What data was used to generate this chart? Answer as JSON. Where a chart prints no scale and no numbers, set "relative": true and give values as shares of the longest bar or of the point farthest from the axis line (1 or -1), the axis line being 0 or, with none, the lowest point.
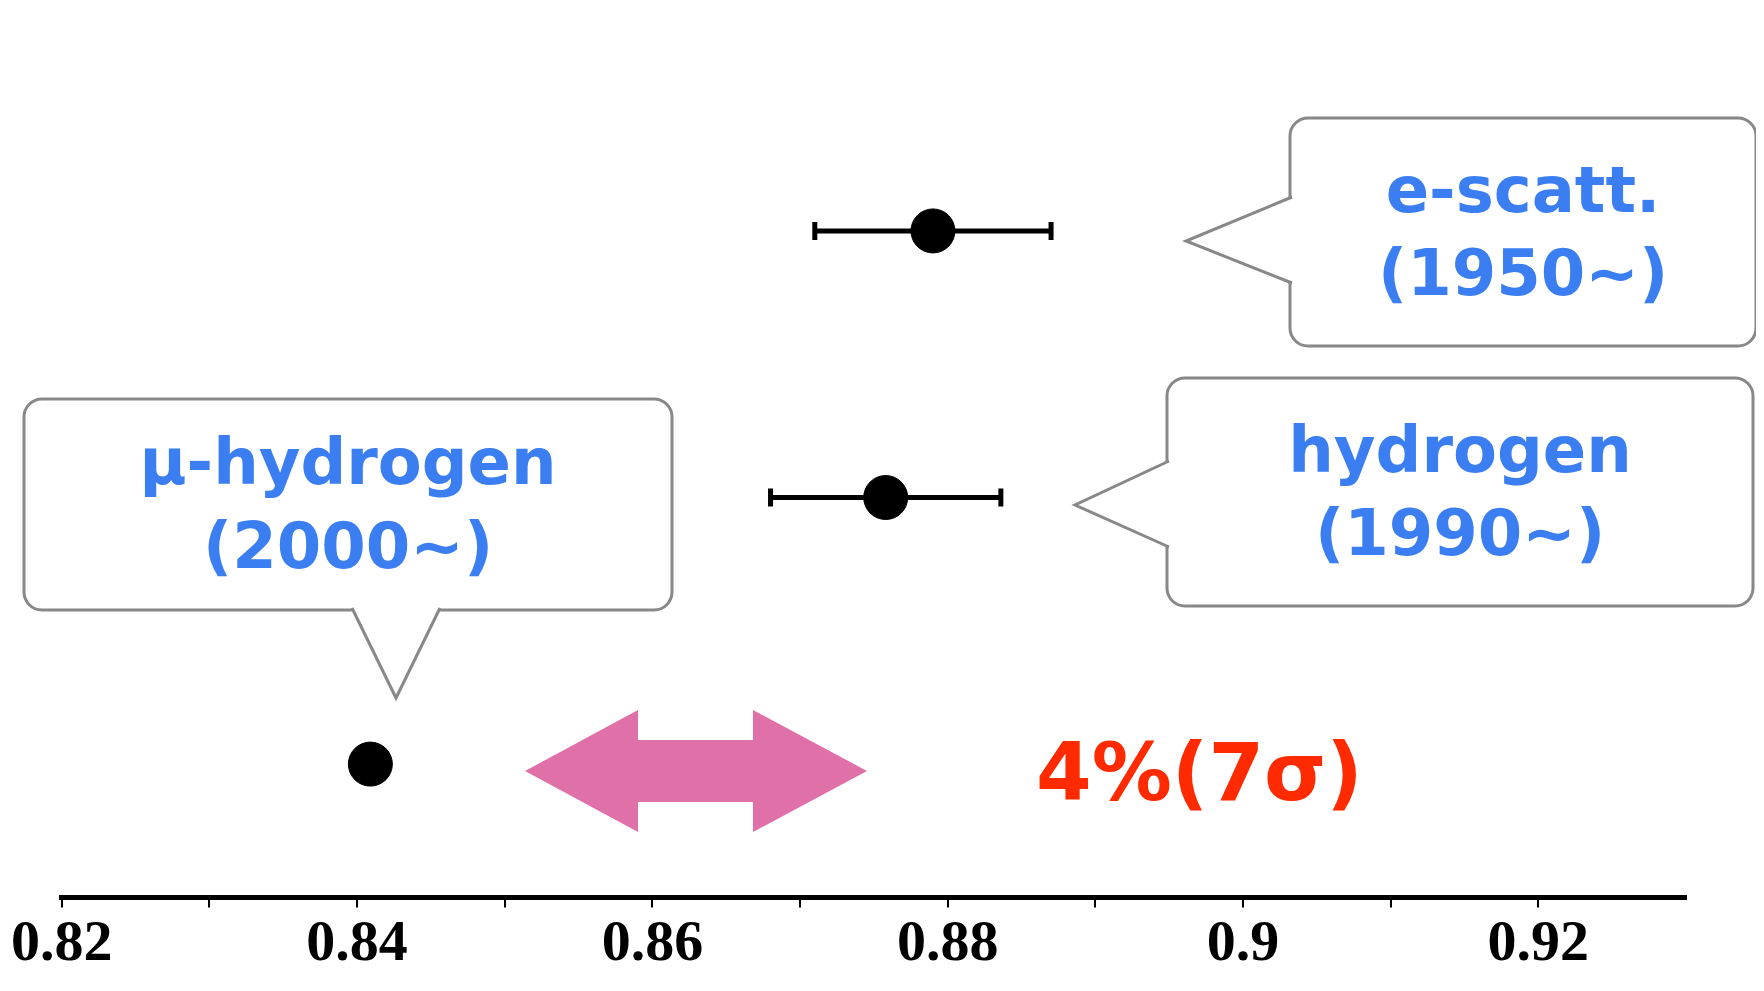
{
  "chart_data": {
    "type": "scatter",
    "relative": true,
    "grid": false,
    "x": [
      0.879,
      0.8758,
      0.8409
    ],
    "values": [
      1,
      0.6,
      0.2
    ],
    "xerrors": [
      0.008,
      0.0078,
      null
    ],
    "color": "#000000",
    "marker": "circle",
    "xlim": [
      0.82,
      0.93
    ],
    "xticks": [
      0.82,
      {
        "value": 0.83,
        "label": null
      },
      0.84,
      {
        "value": 0.85,
        "label": null
      },
      0.86,
      {
        "value": 0.87,
        "label": null
      },
      0.88,
      {
        "value": 0.89,
        "label": null
      },
      {
        "value": 0.9,
        "label": "0.9"
      },
      {
        "value": 0.91,
        "label": null
      },
      0.92
    ],
    "annotations": [
      "e-scatt.\n (1950~)",
      "hydrogen\n(1990~)",
      "μ-hydrogen\n(2000~)",
      "4%(7σ)"
    ]
  }
}
